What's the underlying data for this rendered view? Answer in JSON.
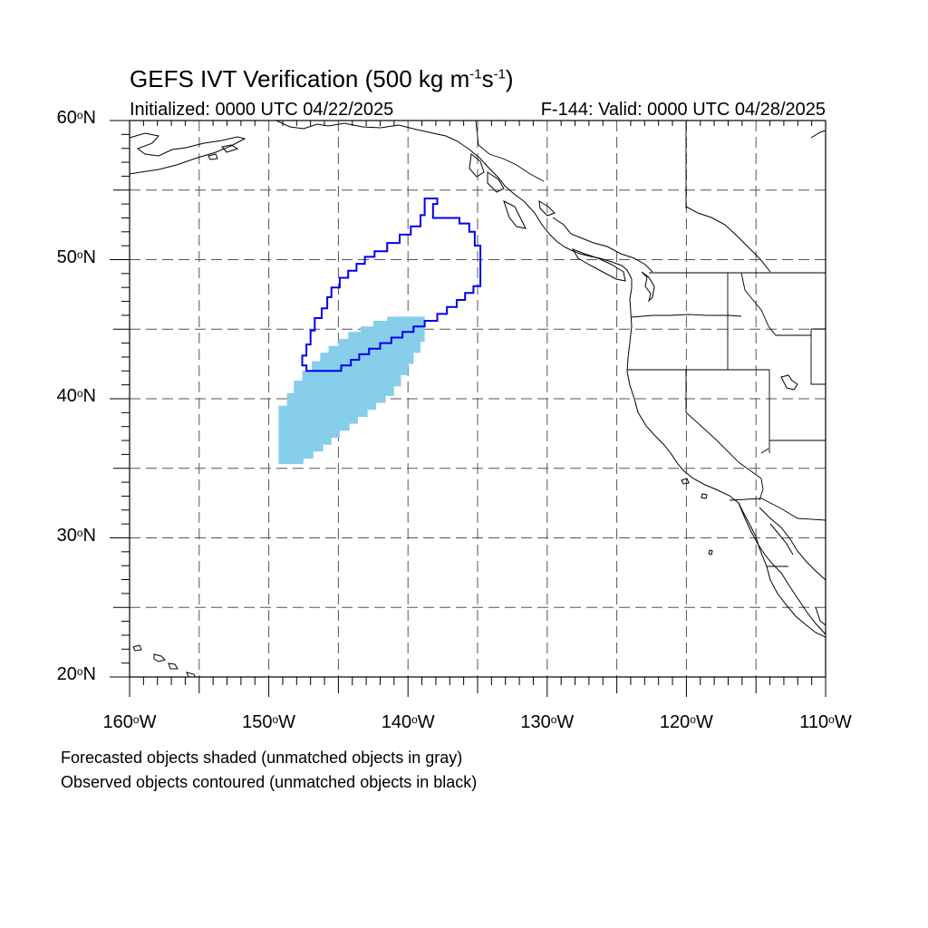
{
  "title": {
    "main": "GEFS IVT Verification (500 kg m",
    "sup1": "-1",
    "mid": "s",
    "sup2": "-1",
    "end": ")"
  },
  "subtitle": {
    "left": "Initialized: 0000 UTC 04/22/2025",
    "right": "F-144: Valid: 0000 UTC 04/28/2025"
  },
  "map": {
    "lon_range": [
      -160,
      -110
    ],
    "lat_range": [
      20,
      60
    ],
    "grid": "dashed every 5 degrees",
    "lat_labels": [
      {
        "value": 60,
        "text": "60",
        "suffix": "N"
      },
      {
        "value": 50,
        "text": "50",
        "suffix": "N"
      },
      {
        "value": 40,
        "text": "40",
        "suffix": "N"
      },
      {
        "value": 30,
        "text": "30",
        "suffix": "N"
      },
      {
        "value": 20,
        "text": "20",
        "suffix": "N"
      }
    ],
    "lon_labels": [
      {
        "value": -160,
        "text": "160",
        "suffix": "W"
      },
      {
        "value": -150,
        "text": "150",
        "suffix": "W"
      },
      {
        "value": -140,
        "text": "140",
        "suffix": "W"
      },
      {
        "value": -130,
        "text": "130",
        "suffix": "W"
      },
      {
        "value": -120,
        "text": "120",
        "suffix": "W"
      },
      {
        "value": -110,
        "text": "110",
        "suffix": "W"
      }
    ],
    "forecast_object": {
      "color": "#87ceeb",
      "polygon": [
        [
          -149.3,
          35.3
        ],
        [
          -147.5,
          35.3
        ],
        [
          -147.5,
          35.7
        ],
        [
          -146.8,
          35.7
        ],
        [
          -146.8,
          36.2
        ],
        [
          -146.1,
          36.2
        ],
        [
          -146.1,
          36.7
        ],
        [
          -145.5,
          36.7
        ],
        [
          -145.5,
          37.2
        ],
        [
          -144.9,
          37.2
        ],
        [
          -144.9,
          37.7
        ],
        [
          -144.2,
          37.7
        ],
        [
          -144.2,
          38.2
        ],
        [
          -143.6,
          38.2
        ],
        [
          -143.6,
          38.7
        ],
        [
          -142.9,
          38.7
        ],
        [
          -142.9,
          39.2
        ],
        [
          -142.3,
          39.2
        ],
        [
          -142.3,
          39.7
        ],
        [
          -141.6,
          39.7
        ],
        [
          -141.6,
          40.2
        ],
        [
          -141.0,
          40.2
        ],
        [
          -141.0,
          40.9
        ],
        [
          -140.5,
          40.9
        ],
        [
          -140.5,
          41.7
        ],
        [
          -140.0,
          41.7
        ],
        [
          -140.0,
          42.5
        ],
        [
          -139.6,
          42.5
        ],
        [
          -139.6,
          43.3
        ],
        [
          -139.1,
          43.3
        ],
        [
          -139.1,
          44.1
        ],
        [
          -138.8,
          44.1
        ],
        [
          -138.8,
          45.9
        ],
        [
          -141.5,
          45.9
        ],
        [
          -141.5,
          45.6
        ],
        [
          -142.5,
          45.6
        ],
        [
          -142.5,
          45.2
        ],
        [
          -143.4,
          45.2
        ],
        [
          -143.4,
          44.8
        ],
        [
          -144.3,
          44.8
        ],
        [
          -144.3,
          44.3
        ],
        [
          -145.0,
          44.3
        ],
        [
          -145.0,
          43.8
        ],
        [
          -145.7,
          43.8
        ],
        [
          -145.7,
          43.3
        ],
        [
          -146.3,
          43.3
        ],
        [
          -146.3,
          42.7
        ],
        [
          -146.9,
          42.7
        ],
        [
          -146.9,
          42.0
        ],
        [
          -147.6,
          42.0
        ],
        [
          -147.6,
          41.3
        ],
        [
          -148.2,
          41.3
        ],
        [
          -148.2,
          40.4
        ],
        [
          -148.7,
          40.4
        ],
        [
          -148.7,
          39.5
        ],
        [
          -149.3,
          39.5
        ]
      ]
    },
    "observed_object": {
      "color": "#0000ee",
      "polygon": [
        [
          -147.3,
          42.0
        ],
        [
          -144.8,
          42.0
        ],
        [
          -144.8,
          42.4
        ],
        [
          -144.1,
          42.4
        ],
        [
          -144.1,
          42.8
        ],
        [
          -143.5,
          42.8
        ],
        [
          -143.5,
          43.2
        ],
        [
          -142.8,
          43.2
        ],
        [
          -142.8,
          43.6
        ],
        [
          -142.0,
          43.6
        ],
        [
          -142.0,
          44.0
        ],
        [
          -141.2,
          44.0
        ],
        [
          -141.2,
          44.4
        ],
        [
          -140.4,
          44.4
        ],
        [
          -140.4,
          44.8
        ],
        [
          -139.6,
          44.8
        ],
        [
          -139.6,
          45.2
        ],
        [
          -138.8,
          45.2
        ],
        [
          -138.8,
          45.6
        ],
        [
          -137.9,
          45.6
        ],
        [
          -137.9,
          46.1
        ],
        [
          -137.2,
          46.1
        ],
        [
          -137.2,
          46.6
        ],
        [
          -136.5,
          46.6
        ],
        [
          -136.5,
          47.1
        ],
        [
          -135.9,
          47.1
        ],
        [
          -135.9,
          47.6
        ],
        [
          -135.3,
          47.6
        ],
        [
          -135.3,
          48.1
        ],
        [
          -134.8,
          48.1
        ],
        [
          -134.8,
          51.0
        ],
        [
          -135.2,
          51.0
        ],
        [
          -135.2,
          52.0
        ],
        [
          -135.6,
          52.0
        ],
        [
          -135.6,
          52.6
        ],
        [
          -136.3,
          52.6
        ],
        [
          -136.3,
          53.0
        ],
        [
          -138.2,
          53.0
        ],
        [
          -138.2,
          54.0
        ],
        [
          -137.9,
          54.0
        ],
        [
          -137.9,
          54.4
        ],
        [
          -138.8,
          54.4
        ],
        [
          -138.8,
          53.2
        ],
        [
          -139.1,
          53.2
        ],
        [
          -139.1,
          52.4
        ],
        [
          -139.8,
          52.4
        ],
        [
          -139.8,
          51.8
        ],
        [
          -140.6,
          51.8
        ],
        [
          -140.6,
          51.2
        ],
        [
          -141.5,
          51.2
        ],
        [
          -141.5,
          50.6
        ],
        [
          -142.4,
          50.6
        ],
        [
          -142.4,
          50.2
        ],
        [
          -143.1,
          50.2
        ],
        [
          -143.1,
          49.7
        ],
        [
          -143.7,
          49.7
        ],
        [
          -143.7,
          49.2
        ],
        [
          -144.3,
          49.2
        ],
        [
          -144.3,
          48.7
        ],
        [
          -144.9,
          48.7
        ],
        [
          -144.9,
          48.0
        ],
        [
          -145.5,
          48.0
        ],
        [
          -145.5,
          47.3
        ],
        [
          -145.8,
          47.3
        ],
        [
          -145.8,
          46.5
        ],
        [
          -146.2,
          46.5
        ],
        [
          -146.2,
          45.8
        ],
        [
          -146.7,
          45.8
        ],
        [
          -146.7,
          44.9
        ],
        [
          -147.0,
          44.9
        ],
        [
          -147.0,
          43.9
        ],
        [
          -147.3,
          43.9
        ],
        [
          -147.3,
          43.1
        ],
        [
          -147.6,
          43.1
        ],
        [
          -147.6,
          42.4
        ],
        [
          -147.3,
          42.4
        ]
      ]
    }
  },
  "notes": {
    "line1": "Forecasted objects shaded (unmatched objects in gray)",
    "line2": "Observed objects contoured (unmatched objects in black)"
  }
}
